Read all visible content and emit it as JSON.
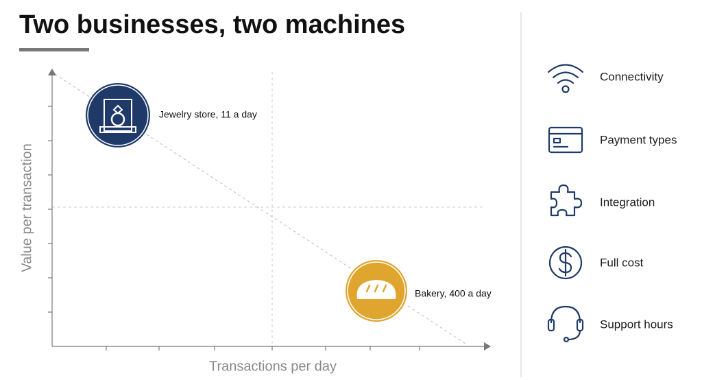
{
  "header": {
    "title": "Two businesses, two machines"
  },
  "diagram": {
    "y_axis_label": "Value per transaction",
    "x_axis_label": "Transactions per day",
    "points": [
      {
        "label": "Jewelry store, 11 a day"
      },
      {
        "label": "Bakery, 400 a day"
      }
    ]
  },
  "factors": [
    {
      "label": "Connectivity"
    },
    {
      "label": "Payment types"
    },
    {
      "label": "Integration"
    },
    {
      "label": "Full cost"
    },
    {
      "label": "Support hours"
    }
  ]
}
